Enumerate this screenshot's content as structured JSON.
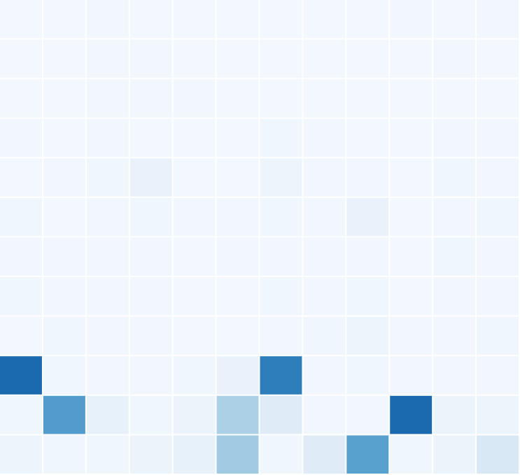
{
  "chart_data": {
    "type": "heatmap",
    "rows": 12,
    "cols": 12,
    "colormap": "Blues",
    "value_range": [
      0,
      1
    ],
    "grid": false,
    "values": [
      [
        0.02,
        0.02,
        0.03,
        0.02,
        0.02,
        0.02,
        0.02,
        0.02,
        0.02,
        0.03,
        0.02,
        0.03
      ],
      [
        0.02,
        0.02,
        0.03,
        0.03,
        0.02,
        0.02,
        0.02,
        0.02,
        0.02,
        0.02,
        0.03,
        0.02
      ],
      [
        0.02,
        0.02,
        0.03,
        0.03,
        0.03,
        0.02,
        0.02,
        0.02,
        0.02,
        0.02,
        0.02,
        0.02
      ],
      [
        0.03,
        0.02,
        0.03,
        0.02,
        0.02,
        0.02,
        0.04,
        0.03,
        0.02,
        0.02,
        0.03,
        0.03
      ],
      [
        0.02,
        0.03,
        0.04,
        0.07,
        0.02,
        0.02,
        0.05,
        0.03,
        0.03,
        0.02,
        0.04,
        0.03
      ],
      [
        0.04,
        0.02,
        0.03,
        0.04,
        0.03,
        0.03,
        0.04,
        0.03,
        0.07,
        0.02,
        0.03,
        0.04
      ],
      [
        0.03,
        0.03,
        0.03,
        0.03,
        0.02,
        0.03,
        0.03,
        0.03,
        0.03,
        0.02,
        0.04,
        0.03
      ],
      [
        0.04,
        0.03,
        0.03,
        0.03,
        0.02,
        0.02,
        0.04,
        0.03,
        0.04,
        0.02,
        0.03,
        0.03
      ],
      [
        0.02,
        0.04,
        0.03,
        0.03,
        0.02,
        0.02,
        0.03,
        0.04,
        0.05,
        0.03,
        0.03,
        0.04
      ],
      [
        0.78,
        0.04,
        0.03,
        0.03,
        0.04,
        0.07,
        0.7,
        0.03,
        0.04,
        0.03,
        0.03,
        0.03
      ],
      [
        0.04,
        0.58,
        0.08,
        0.04,
        0.06,
        0.33,
        0.12,
        0.03,
        0.03,
        0.78,
        0.06,
        0.05
      ],
      [
        0.05,
        0.04,
        0.04,
        0.06,
        0.08,
        0.37,
        0.04,
        0.12,
        0.56,
        0.04,
        0.06,
        0.15
      ]
    ]
  }
}
